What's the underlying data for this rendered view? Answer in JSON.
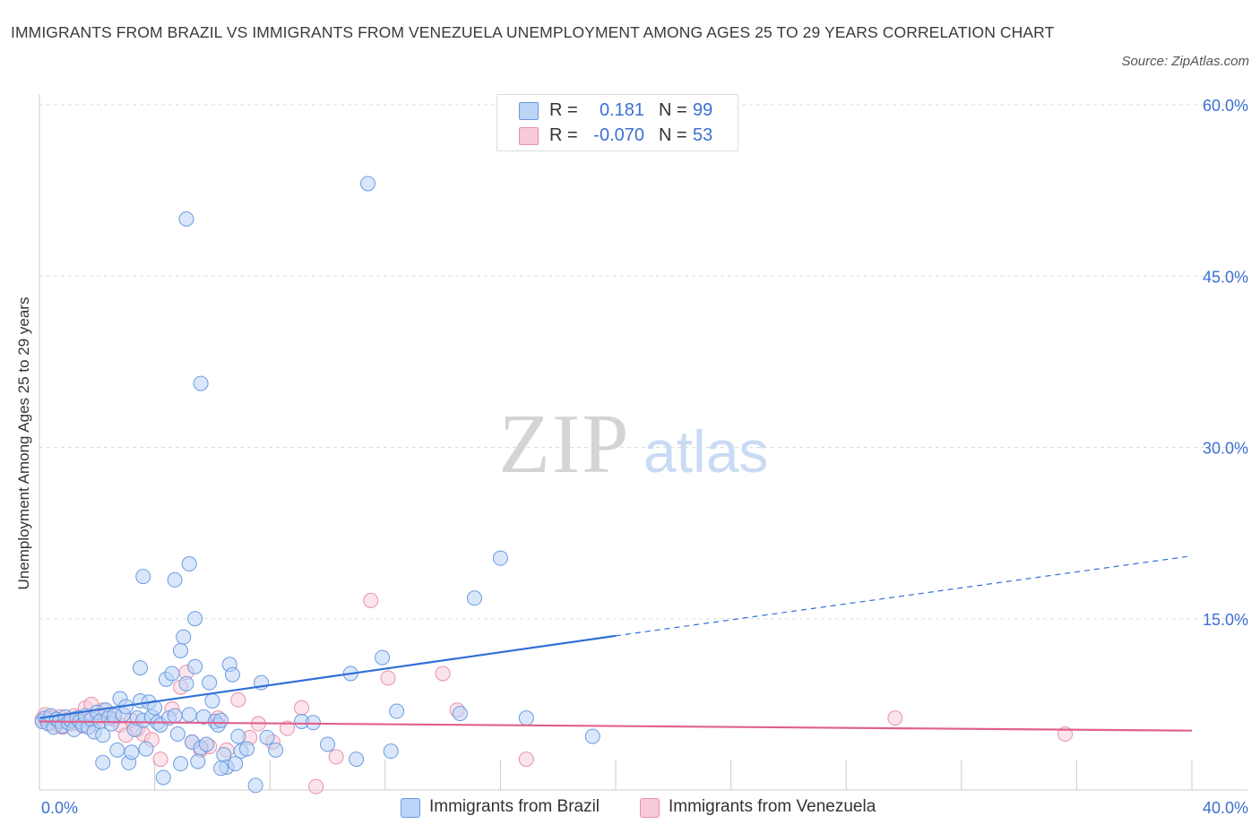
{
  "title": "IMMIGRANTS FROM BRAZIL VS IMMIGRANTS FROM VENEZUELA UNEMPLOYMENT AMONG AGES 25 TO 29 YEARS CORRELATION CHART",
  "source": "Source: ZipAtlas.com",
  "watermark": {
    "zip": "ZIP",
    "atlas": "atlas"
  },
  "legend": {
    "r_label": "R =",
    "n_label": "N =",
    "brazil": {
      "r": "0.181",
      "n": "99"
    },
    "venezuela": {
      "r": "-0.070",
      "n": "53"
    }
  },
  "bottom_legend": {
    "brazil": "Immigrants from Brazil",
    "venezuela": "Immigrants from Venezuela"
  },
  "colors": {
    "brazil_fill": "#bcd4f6",
    "brazil_stroke": "#6b9be0",
    "brazil_line": "#2f6fd6",
    "venezuela_fill": "#f8cad8",
    "venezuela_stroke": "#e891ad",
    "venezuela_line": "#e0608d",
    "value_text": "#3b6fd1",
    "grid": "#dddddd"
  },
  "chart_data": {
    "type": "scatter",
    "title": "IMMIGRANTS FROM BRAZIL VS IMMIGRANTS FROM VENEZUELA UNEMPLOYMENT AMONG AGES 25 TO 29 YEARS CORRELATION CHART",
    "xlabel": "",
    "ylabel": "Unemployment Among Ages 25 to 29 years",
    "xlim": [
      0,
      40
    ],
    "ylim": [
      0,
      60
    ],
    "x_tick_labels": [
      "0.0%",
      "40.0%"
    ],
    "y_ticks": [
      15,
      30,
      45,
      60
    ],
    "y_tick_labels": [
      "15.0%",
      "30.0%",
      "45.0%",
      "60.0%"
    ],
    "grid": true,
    "legend_position": "top-center",
    "series": [
      {
        "name": "Immigrants from Brazil",
        "r": 0.181,
        "n": 99,
        "trend": {
          "x0": 0,
          "y0": 6.3,
          "x1": 20,
          "y1": 13.5,
          "dash_to_x": 40,
          "dash_to_y": 20.5
        },
        "points": [
          [
            0.1,
            6.0
          ],
          [
            0.2,
            6.3
          ],
          [
            0.3,
            5.8
          ],
          [
            0.4,
            6.5
          ],
          [
            0.5,
            5.5
          ],
          [
            0.6,
            6.2
          ],
          [
            0.7,
            6.0
          ],
          [
            0.8,
            5.6
          ],
          [
            0.9,
            6.4
          ],
          [
            1.0,
            5.9
          ],
          [
            1.1,
            6.1
          ],
          [
            1.2,
            5.3
          ],
          [
            1.3,
            6.3
          ],
          [
            1.4,
            6.0
          ],
          [
            1.5,
            5.7
          ],
          [
            1.6,
            6.5
          ],
          [
            1.7,
            5.5
          ],
          [
            1.8,
            6.2
          ],
          [
            1.9,
            5.1
          ],
          [
            2.0,
            6.8
          ],
          [
            2.1,
            6.0
          ],
          [
            2.2,
            4.8
          ],
          [
            2.3,
            7.0
          ],
          [
            2.4,
            6.3
          ],
          [
            2.5,
            5.8
          ],
          [
            2.6,
            6.5
          ],
          [
            2.7,
            3.5
          ],
          [
            2.8,
            8.0
          ],
          [
            2.9,
            6.6
          ],
          [
            3.0,
            7.3
          ],
          [
            3.1,
            2.4
          ],
          [
            3.2,
            3.3
          ],
          [
            3.3,
            5.3
          ],
          [
            3.4,
            6.3
          ],
          [
            3.5,
            7.8
          ],
          [
            3.6,
            6.1
          ],
          [
            3.7,
            3.6
          ],
          [
            3.8,
            7.7
          ],
          [
            3.9,
            6.4
          ],
          [
            4.0,
            7.2
          ],
          [
            4.1,
            5.9
          ],
          [
            4.2,
            5.7
          ],
          [
            4.3,
            1.1
          ],
          [
            4.4,
            9.7
          ],
          [
            4.5,
            6.3
          ],
          [
            4.6,
            10.2
          ],
          [
            4.7,
            6.5
          ],
          [
            4.8,
            4.9
          ],
          [
            4.9,
            12.2
          ],
          [
            5.0,
            13.4
          ],
          [
            5.1,
            9.3
          ],
          [
            5.2,
            6.6
          ],
          [
            5.3,
            4.2
          ],
          [
            5.4,
            10.8
          ],
          [
            5.5,
            2.5
          ],
          [
            5.6,
            3.7
          ],
          [
            5.7,
            6.4
          ],
          [
            5.8,
            4.0
          ],
          [
            5.9,
            9.4
          ],
          [
            6.0,
            7.8
          ],
          [
            6.1,
            6.0
          ],
          [
            6.2,
            5.7
          ],
          [
            6.3,
            6.1
          ],
          [
            6.4,
            3.1
          ],
          [
            6.5,
            2.0
          ],
          [
            6.6,
            11.0
          ],
          [
            6.7,
            10.1
          ],
          [
            6.8,
            2.3
          ],
          [
            6.9,
            4.7
          ],
          [
            7.0,
            3.4
          ],
          [
            7.2,
            3.6
          ],
          [
            7.5,
            0.4
          ],
          [
            7.7,
            9.4
          ],
          [
            7.9,
            4.6
          ],
          [
            8.2,
            3.5
          ],
          [
            9.1,
            6.0
          ],
          [
            9.5,
            5.9
          ],
          [
            10.0,
            4.0
          ],
          [
            10.8,
            10.2
          ],
          [
            11.0,
            2.7
          ],
          [
            11.9,
            11.6
          ],
          [
            12.2,
            3.4
          ],
          [
            12.4,
            6.9
          ],
          [
            14.6,
            6.7
          ],
          [
            15.1,
            16.8
          ],
          [
            16.0,
            20.3
          ],
          [
            16.9,
            6.3
          ],
          [
            19.2,
            4.7
          ],
          [
            3.6,
            18.7
          ],
          [
            4.7,
            18.4
          ],
          [
            5.4,
            15.0
          ],
          [
            5.2,
            19.8
          ],
          [
            3.5,
            10.7
          ],
          [
            5.6,
            35.6
          ],
          [
            5.1,
            50.0
          ],
          [
            11.4,
            53.1
          ],
          [
            2.2,
            2.4
          ],
          [
            4.9,
            2.3
          ],
          [
            6.3,
            1.9
          ]
        ]
      },
      {
        "name": "Immigrants from Venezuela",
        "r": -0.07,
        "n": 53,
        "trend": {
          "x0": 0,
          "y0": 6.0,
          "x1": 40,
          "y1": 5.2
        },
        "points": [
          [
            0.1,
            6.2
          ],
          [
            0.2,
            6.6
          ],
          [
            0.3,
            5.9
          ],
          [
            0.4,
            6.3
          ],
          [
            0.5,
            6.1
          ],
          [
            0.6,
            5.7
          ],
          [
            0.7,
            6.4
          ],
          [
            0.8,
            5.5
          ],
          [
            0.9,
            6.0
          ],
          [
            1.0,
            6.2
          ],
          [
            1.1,
            5.8
          ],
          [
            1.2,
            6.5
          ],
          [
            1.3,
            5.9
          ],
          [
            1.4,
            6.3
          ],
          [
            1.5,
            5.6
          ],
          [
            1.6,
            7.2
          ],
          [
            1.7,
            6.1
          ],
          [
            1.8,
            7.5
          ],
          [
            1.9,
            5.8
          ],
          [
            2.0,
            6.4
          ],
          [
            2.2,
            7.0
          ],
          [
            2.4,
            6.5
          ],
          [
            2.6,
            6.2
          ],
          [
            2.8,
            5.7
          ],
          [
            3.0,
            4.8
          ],
          [
            3.2,
            6.1
          ],
          [
            3.4,
            5.3
          ],
          [
            3.6,
            4.9
          ],
          [
            3.9,
            4.4
          ],
          [
            4.2,
            2.7
          ],
          [
            4.6,
            7.1
          ],
          [
            4.9,
            9.0
          ],
          [
            5.1,
            10.3
          ],
          [
            5.3,
            4.2
          ],
          [
            5.6,
            3.5
          ],
          [
            5.9,
            3.8
          ],
          [
            6.2,
            6.3
          ],
          [
            6.5,
            3.5
          ],
          [
            6.9,
            7.9
          ],
          [
            7.3,
            4.6
          ],
          [
            7.6,
            5.8
          ],
          [
            8.1,
            4.2
          ],
          [
            8.6,
            5.4
          ],
          [
            9.1,
            7.2
          ],
          [
            9.6,
            0.3
          ],
          [
            10.3,
            2.9
          ],
          [
            11.5,
            16.6
          ],
          [
            12.1,
            9.8
          ],
          [
            14.0,
            10.2
          ],
          [
            14.5,
            7.0
          ],
          [
            16.9,
            2.7
          ],
          [
            29.7,
            6.3
          ],
          [
            35.6,
            4.9
          ]
        ]
      }
    ]
  }
}
